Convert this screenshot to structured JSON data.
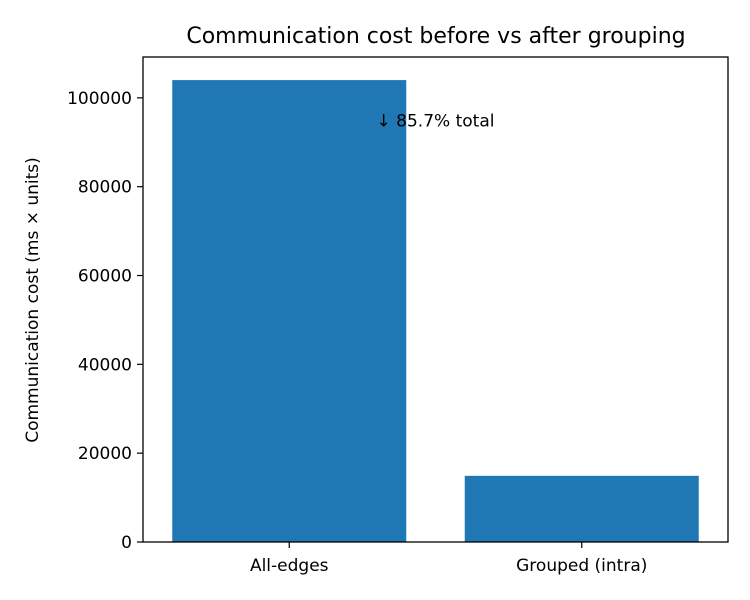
{
  "chart_data": {
    "type": "bar",
    "title": "Communication cost before vs after grouping",
    "xlabel": "",
    "ylabel": "Communication cost (ms × units)",
    "categories": [
      "All-edges",
      "Grouped (intra)"
    ],
    "values": [
      104000,
      14900
    ],
    "ylim": [
      0,
      109200
    ],
    "yticks": [
      0,
      20000,
      40000,
      60000,
      80000,
      100000
    ],
    "bar_color": "#1f77b4",
    "grid": false,
    "legend": "none",
    "annotation": {
      "text": "↓ 85.7% total",
      "x": 0.5,
      "y": 93600
    }
  }
}
